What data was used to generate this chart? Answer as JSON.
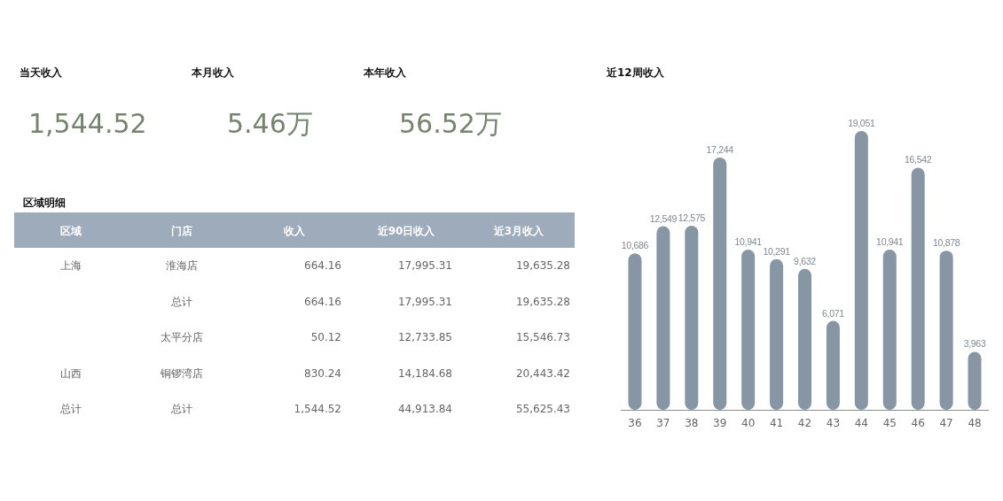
{
  "chart_data": [
    {
      "type": "other",
      "title": "当天收入",
      "annotations": [
        "1,544.52"
      ]
    },
    {
      "type": "other",
      "title": "本月收入",
      "annotations": [
        "5.46万"
      ]
    },
    {
      "type": "other",
      "title": "本年收入",
      "annotations": [
        "56.52万"
      ]
    },
    {
      "type": "other",
      "title": "区域明细",
      "categories": [
        "区域",
        "门店",
        "收入",
        "近90日收入",
        "近3月收入"
      ],
      "cell_labels": [
        [
          "上海",
          "淮海店",
          "664.16",
          "17,995.31",
          "19,635.28"
        ],
        [
          null,
          "总计",
          "664.16",
          "17,995.31",
          "19,635.28"
        ],
        [
          null,
          "太平分店",
          "50.12",
          "12,733.85",
          "15,546.73"
        ],
        [
          "山西",
          "铜锣湾店",
          "830.24",
          "14,184.68",
          "20,443.42"
        ],
        [
          "总计",
          "总计",
          "1,544.52",
          "44,913.84",
          "55,625.43"
        ]
      ]
    },
    {
      "type": "bar",
      "title": "近12周收入",
      "categories": [
        "36",
        "37",
        "38",
        "39",
        "40",
        "41",
        "42",
        "43",
        "44",
        "45",
        "46",
        "47",
        "48"
      ],
      "values": [
        10686,
        12549,
        12575,
        17244,
        10941,
        10291,
        9632,
        6071,
        19051,
        10941,
        16542,
        10878,
        3963
      ],
      "color": "#8796a5",
      "value_labels": [
        "10,686",
        "12,549",
        "12,575",
        "17,244",
        "10,941",
        "10,291",
        "9,632",
        "6,071",
        "19,051",
        "10,941",
        "16,542",
        "10,878",
        "3,963"
      ]
    }
  ]
}
